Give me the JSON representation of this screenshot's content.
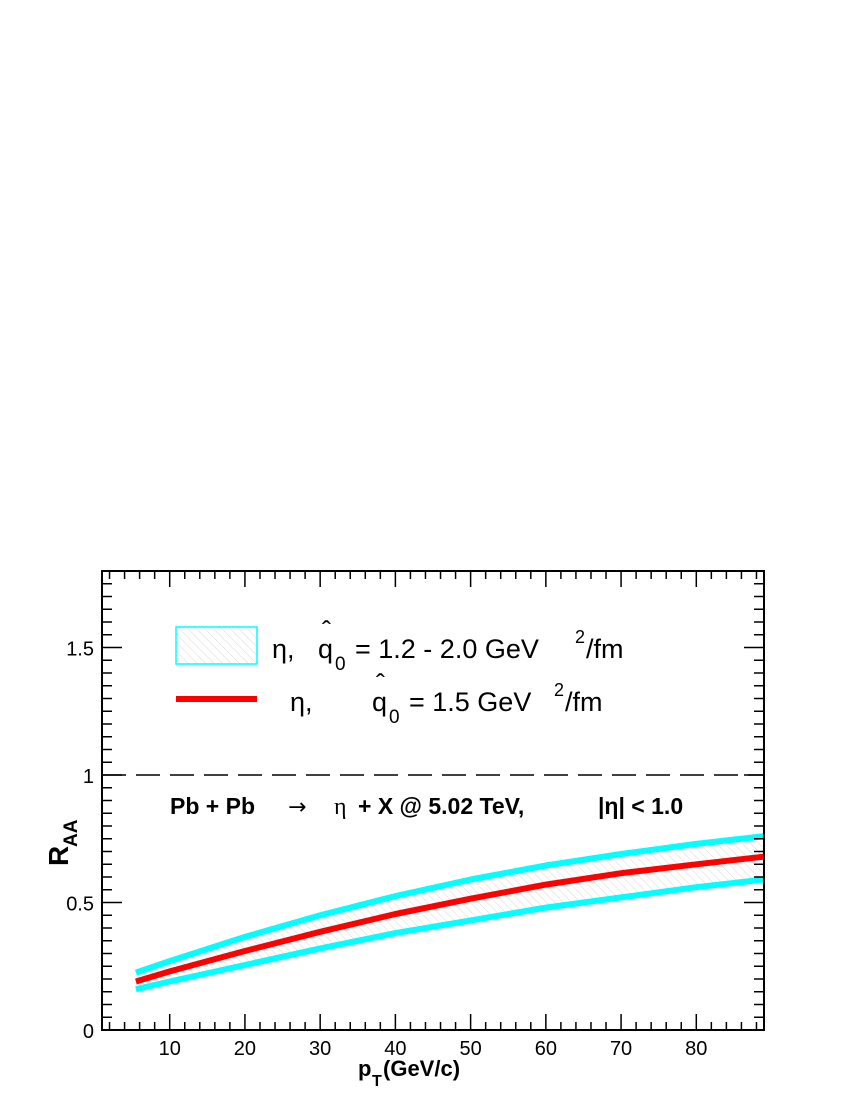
{
  "chart_data": {
    "type": "line",
    "xlabel": "p",
    "xlabel_sub": "T",
    "xlabel_units": " (GeV/c)",
    "ylabel": "R",
    "ylabel_sub": "AA",
    "xlim": [
      1,
      89
    ],
    "ylim": [
      0,
      1.8
    ],
    "xticks": [
      10,
      20,
      30,
      40,
      50,
      60,
      70,
      80
    ],
    "yticks": [
      0,
      0.5,
      1,
      1.5
    ],
    "ytick_labels": [
      "0",
      "0.5",
      "1",
      "1.5"
    ],
    "reference_line": {
      "y": 1,
      "style": "dashed"
    },
    "annotation": {
      "part1": "Pb + Pb",
      "arrow": "→",
      "part2": "η",
      "part3": "+ X @ 5.02 TeV,",
      "part4": "|η| < 1.0"
    },
    "legend": [
      {
        "symbol": "band",
        "color": "#00ffff",
        "eta": "η,",
        "qhat": "q",
        "hat": "ˆ",
        "sub": "0",
        "rest": "= 1.2 - 2.0 GeV",
        "sup": "2",
        "tail": "/fm"
      },
      {
        "symbol": "line",
        "color": "#ff0000",
        "eta": "η,",
        "qhat": "q",
        "hat": "ˆ",
        "sub": "0",
        "rest": "= 1.5 GeV",
        "sup": "2",
        "tail": "/fm"
      }
    ],
    "x": [
      5.5,
      10,
      20,
      30,
      40,
      50,
      60,
      70,
      80,
      89
    ],
    "series": [
      {
        "key": "upper",
        "color": "#00ffff",
        "values": [
          0.225,
          0.27,
          0.365,
          0.45,
          0.525,
          0.59,
          0.645,
          0.69,
          0.73,
          0.76
        ]
      },
      {
        "key": "central",
        "color": "#ff0000",
        "values": [
          0.19,
          0.23,
          0.31,
          0.385,
          0.455,
          0.515,
          0.57,
          0.615,
          0.65,
          0.68
        ]
      },
      {
        "key": "lower",
        "color": "#00ffff",
        "values": [
          0.16,
          0.19,
          0.255,
          0.32,
          0.38,
          0.43,
          0.48,
          0.52,
          0.56,
          0.59
        ]
      }
    ],
    "band_fill": "#dcdcdc"
  }
}
